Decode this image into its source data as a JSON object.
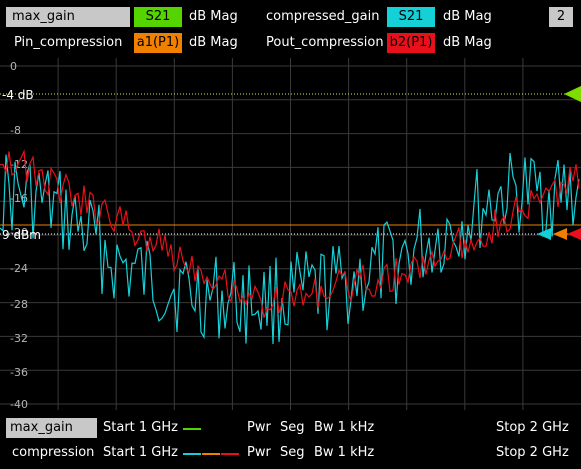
{
  "header": {
    "trace1": {
      "name": "max_gain",
      "param": "S21",
      "format": "dB Mag",
      "color": "#56d400"
    },
    "trace2": {
      "name": "compressed_gain",
      "param": "S21",
      "format": "dB Mag",
      "color": "#16d0d8"
    },
    "trace3": {
      "name": "Pin_compression",
      "param": "a1(P1)",
      "format": "dB Mag",
      "color": "#f08000"
    },
    "trace4": {
      "name": "Pout_compression",
      "param": "b2(P1)",
      "format": "dB Mag",
      "color": "#e8101a"
    },
    "window_number": "2"
  },
  "plot": {
    "y_ticks": [
      "0",
      "-4 dB",
      "-8",
      "-12",
      "-16",
      "-20",
      "9 dBm",
      "-24",
      "-28",
      "-32",
      "-36",
      "-40"
    ],
    "ref_label_1": "-4 dB",
    "ref_label_2": "9 dBm"
  },
  "chart_data": {
    "type": "line",
    "ylim": [
      -40,
      0
    ],
    "grid": true,
    "series": [
      {
        "name": "compressed_gain",
        "color": "#16d0d8"
      },
      {
        "name": "Pout_compression",
        "color": "#e8101a"
      }
    ]
  },
  "footer": {
    "row1": {
      "channel": "max_gain",
      "start": "Start  1 GHz",
      "pwr": "Pwr",
      "seg": "Seg",
      "bw": "Bw  1 kHz",
      "stop": "Stop  2 GHz"
    },
    "row2": {
      "channel": "compression",
      "start": "Start  1 GHz",
      "pwr": "Pwr",
      "seg": "Seg",
      "bw": "Bw  1 kHz",
      "stop": "Stop  2 GHz"
    }
  }
}
